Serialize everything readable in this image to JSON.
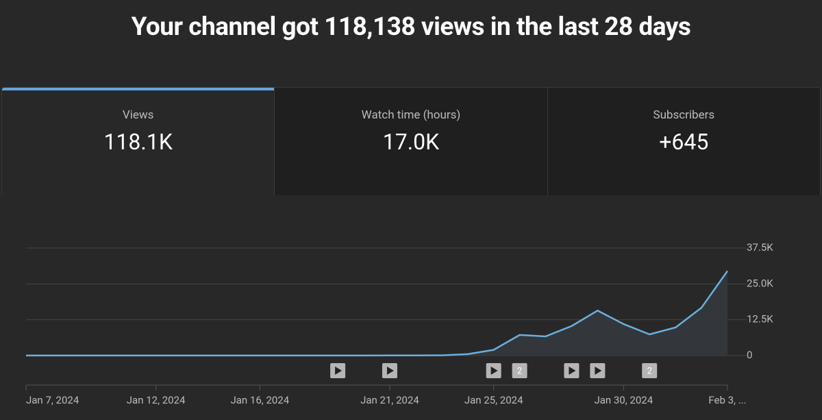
{
  "header": {
    "title": "Your channel got 118,138 views in the last 28 days"
  },
  "tabs": [
    {
      "label": "Views",
      "value": "118.1K",
      "selected": true
    },
    {
      "label": "Watch time (hours)",
      "value": "17.0K",
      "selected": false
    },
    {
      "label": "Subscribers",
      "value": "+645",
      "selected": false
    }
  ],
  "chart_data": {
    "type": "line",
    "categories": [
      "Jan 7, 2024",
      null,
      null,
      null,
      null,
      "Jan 12, 2024",
      null,
      null,
      null,
      "Jan 16, 2024",
      null,
      null,
      null,
      null,
      "Jan 21, 2024",
      null,
      null,
      null,
      "Jan 25, 2024",
      null,
      null,
      null,
      null,
      "Jan 30, 2024",
      null,
      null,
      null,
      "Feb 3, ..."
    ],
    "values": [
      30,
      30,
      30,
      30,
      30,
      30,
      30,
      30,
      30,
      30,
      30,
      30,
      40,
      40,
      60,
      60,
      100,
      500,
      2000,
      7200,
      6700,
      10300,
      15700,
      11000,
      7400,
      9800,
      16700,
      29500
    ],
    "color": "#6ab0de",
    "ylim": [
      0,
      37500
    ],
    "yticks": [
      0,
      {
        "value": 12500,
        "label": "12.5K"
      },
      {
        "value": 25000,
        "label": "25.0K"
      },
      {
        "value": 37500,
        "label": "37.5K"
      }
    ],
    "grid": true,
    "markers": [
      {
        "index": 12
      },
      {
        "index": 14
      },
      {
        "index": 18
      },
      {
        "index": 19,
        "label": "2"
      },
      {
        "index": 21
      },
      {
        "index": 22
      },
      {
        "index": 24,
        "label": "2"
      }
    ]
  }
}
